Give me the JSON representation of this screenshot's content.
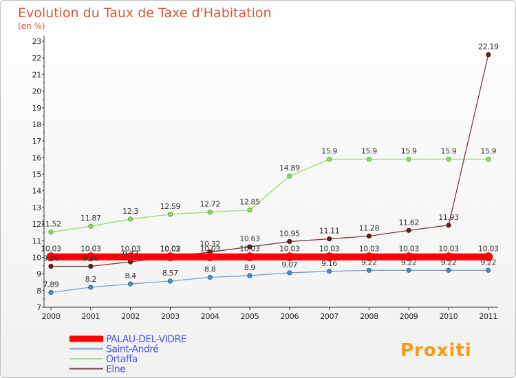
{
  "chart_data": {
    "type": "line",
    "title": "Evolution du Taux de Taxe d'Habitation",
    "subtitle": "(en %)",
    "x": [
      "2000",
      "2001",
      "2002",
      "2003",
      "2004",
      "2005",
      "2006",
      "2007",
      "2008",
      "2009",
      "2010",
      "2011"
    ],
    "ylim": [
      7,
      23
    ],
    "yticks": [
      "7",
      "8",
      "9",
      "10",
      "11",
      "12",
      "13",
      "14",
      "15",
      "16",
      "17",
      "18",
      "19",
      "20",
      "21",
      "22",
      "23"
    ],
    "grid": false,
    "legend_position": "bottom-left",
    "series": [
      {
        "name": "PALAU-DEL-VIDRE",
        "color": "#ff0000",
        "key": "palau",
        "values": [
          10.03,
          10.03,
          10.03,
          10.03,
          10.03,
          10.03,
          10.03,
          10.03,
          10.03,
          10.03,
          10.03,
          10.03
        ],
        "labels": [
          "10.03",
          "10.03",
          "10.03",
          "10.03",
          "10.03",
          "10.03",
          "10.03",
          "10.03",
          "10.03",
          "10.03",
          "10.03",
          "10.03"
        ]
      },
      {
        "name": "Saint-André",
        "color": "#5b9bd5",
        "key": "saint",
        "values": [
          7.89,
          8.2,
          8.4,
          8.57,
          8.8,
          8.9,
          9.07,
          9.16,
          9.22,
          9.22,
          9.22,
          9.22
        ],
        "labels": [
          "7.89",
          "8.2",
          "8.4",
          "8.57",
          "8.8",
          "8.9",
          "9.07",
          "9.16",
          "9.22",
          "9.22",
          "9.22",
          "9.22"
        ]
      },
      {
        "name": "Ortaffa",
        "color": "#a6e07a",
        "key": "ortaffa",
        "values": [
          11.52,
          11.87,
          12.3,
          12.59,
          12.72,
          12.85,
          14.89,
          15.9,
          15.9,
          15.9,
          15.9,
          15.9
        ],
        "labels": [
          "11.52",
          "11.87",
          "12.3",
          "12.59",
          "12.72",
          "12.85",
          "14.89",
          "15.9",
          "15.9",
          "15.9",
          "15.9",
          "15.9"
        ]
      },
      {
        "name": "Elne",
        "color": "#7a3b3b",
        "key": "elne",
        "values": [
          9.46,
          9.46,
          9.73,
          10.02,
          10.32,
          10.63,
          10.95,
          11.11,
          11.28,
          11.62,
          11.93,
          22.19
        ],
        "labels": [
          "9.46",
          "9.46",
          "9.73",
          "10.02",
          "10.32",
          "10.63",
          "10.95",
          "11.11",
          "11.28",
          "11.62",
          "11.93",
          "22.19"
        ]
      }
    ]
  },
  "branding": {
    "logo_text": "Proxiti"
  }
}
